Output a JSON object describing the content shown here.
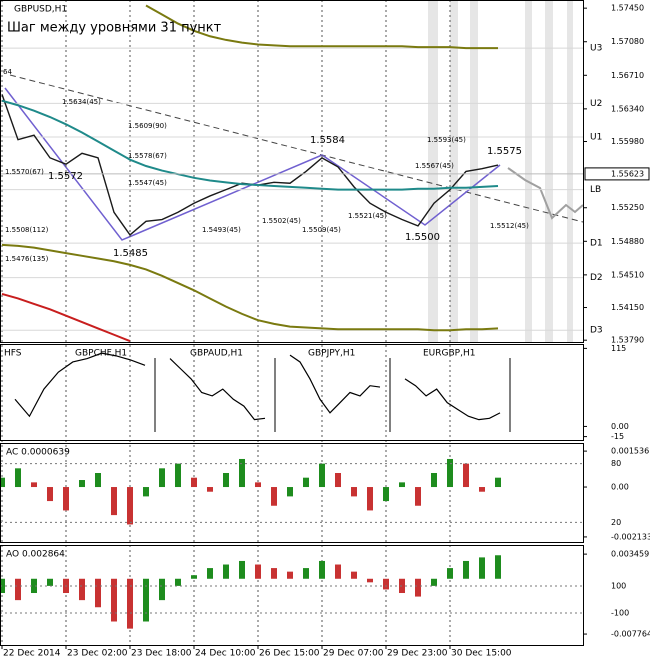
{
  "chart_data": [
    {
      "type": "line",
      "title": "GBPUSD,H1",
      "subtitle": "Шаг между уровнями 31 пункт",
      "categories": [
        "22 Dec 2014",
        null,
        null,
        null,
        "23 Dec 02:00",
        null,
        null,
        null,
        "23 Dec 18:00",
        null,
        null,
        null,
        "24 Dec 10:00",
        null,
        null,
        null,
        "26 Dec 15:00",
        null,
        null,
        null,
        "29 Dec 07:00",
        null,
        null,
        null,
        "29 Dec 23:00",
        null,
        null,
        null,
        "30 Dec 15:00",
        null,
        null,
        null
      ],
      "series": [
        {
          "color": "#1a1a1a",
          "values": [
            1.565,
            1.56,
            1.5605,
            1.558,
            1.5573,
            1.5585,
            1.558,
            1.552,
            1.5495,
            1.551,
            1.5512,
            1.552,
            1.553,
            1.5538,
            1.5545,
            1.5552,
            1.555,
            1.5553,
            1.5552,
            1.5565,
            1.558,
            1.557,
            1.5548,
            1.553,
            1.552,
            1.5512,
            1.5505,
            1.553,
            1.5545,
            1.5565,
            1.5568,
            1.5572
          ]
        },
        {
          "color": "#1f8a8a",
          "values": [
            1.5643,
            1.5638,
            1.5632,
            1.5625,
            1.5617,
            1.5608,
            1.5598,
            1.5588,
            1.5578,
            1.5571,
            1.5566,
            1.5562,
            1.5558,
            1.5555,
            1.5553,
            1.5551,
            1.555,
            1.5549,
            1.5548,
            1.5547,
            1.5546,
            1.5545,
            1.5545,
            1.5545,
            1.5545,
            1.5545,
            1.5546,
            1.5546,
            1.5547,
            1.5547,
            1.5548,
            1.5549
          ]
        },
        {
          "color": "#7a7a10",
          "values": [
            null,
            null,
            null,
            null,
            null,
            null,
            null,
            null,
            null,
            1.5748,
            1.5738,
            1.5728,
            1.572,
            1.5714,
            1.571,
            1.5707,
            1.5705,
            1.5704,
            1.5703,
            1.5703,
            1.5703,
            1.5703,
            1.5703,
            1.5703,
            1.5703,
            1.5703,
            1.5702,
            1.5702,
            1.5702,
            1.5701,
            1.5701,
            1.5701
          ]
        },
        {
          "color": "#7a7a10",
          "values": [
            1.5484,
            1.5483,
            1.5481,
            1.5478,
            1.5475,
            1.5472,
            1.5469,
            1.5466,
            1.5462,
            1.5457,
            1.545,
            1.5442,
            1.5434,
            1.5425,
            1.5416,
            1.5408,
            1.5401,
            1.5397,
            1.5394,
            1.5393,
            1.5392,
            1.5391,
            1.5391,
            1.5391,
            1.5391,
            1.5391,
            1.5391,
            1.539,
            1.539,
            1.5391,
            1.5391,
            1.5392
          ]
        },
        {
          "color": "#c81e1e",
          "values": [
            1.543,
            1.5425,
            1.5419,
            1.5413,
            1.5406,
            1.5399,
            1.5392,
            1.5385,
            1.5378,
            null,
            null,
            null,
            null,
            null,
            null,
            null,
            null,
            null,
            null,
            null,
            null,
            null,
            null,
            null,
            null,
            null,
            null,
            null,
            null,
            null,
            null,
            null
          ]
        }
      ],
      "ylim": [
        1.5377,
        1.5754
      ],
      "yticks": [
        {
          "value": 1.5745,
          "label": "1.57450"
        },
        {
          "value": 1.5708,
          "label": "1.57080"
        },
        {
          "value": 1.5671,
          "label": "1.56710"
        },
        {
          "value": 1.5634,
          "label": "1.56340"
        },
        {
          "value": 1.5598,
          "label": "1.55980"
        },
        {
          "value": 1.5525,
          "label": "1.55250"
        },
        {
          "value": 1.5488,
          "label": "1.54880"
        },
        {
          "value": 1.5451,
          "label": "1.54510"
        },
        {
          "value": 1.5415,
          "label": "1.54150"
        },
        {
          "value": 1.5379,
          "label": "1.53790"
        }
      ],
      "current_price": {
        "value": 1.55623,
        "label": "1.55623"
      },
      "levels": [
        {
          "label": "U3",
          "value": 1.5701
        },
        {
          "label": "U2",
          "value": 1.564
        },
        {
          "label": "U1",
          "value": 1.5603
        },
        {
          "label": "LB",
          "value": 1.5545
        },
        {
          "label": "D1",
          "value": 1.5486
        },
        {
          "label": "D2",
          "value": 1.5448
        },
        {
          "label": "D3",
          "value": 1.539
        }
      ],
      "level_color": "#d8d8d8",
      "annotations": [
        "1.5584",
        "1.5572",
        "1.5485",
        "1.5500",
        "1.5575",
        "1.5593(45)",
        "1.5567(45)",
        "1.5634(45)",
        "1.5609(90)",
        "1.5578(67)",
        "1.5547(45)",
        "1.5570(67)",
        "1.5508(112)",
        "1.5476(135)",
        "1.5502(45)",
        "1.5493(45)",
        "1.5521(45)",
        "1.5509(45)",
        "1.5512(45)",
        "64"
      ],
      "grid": "x"
    },
    {
      "type": "line",
      "title": "HFS",
      "series": [
        {
          "name": "GBPCHF,H1",
          "color": "#000000",
          "values": [
            40,
            15,
            55,
            80,
            95,
            100,
            108,
            104,
            98,
            90
          ]
        },
        {
          "name": "GBPAUD,H1",
          "color": "#000000",
          "values": [
            100,
            85,
            70,
            50,
            45,
            55,
            40,
            30,
            10,
            12
          ]
        },
        {
          "name": "GBPJPY,H1",
          "color": "#000000",
          "values": [
            105,
            95,
            70,
            40,
            20,
            35,
            50,
            45,
            60,
            58
          ]
        },
        {
          "name": "EURGBP,H1",
          "color": "#000000",
          "values": [
            70,
            60,
            45,
            55,
            35,
            25,
            15,
            10,
            12,
            20
          ]
        }
      ],
      "ylim": [
        -20,
        120
      ],
      "yticks": [
        115,
        {
          "value": 0,
          "label": "0.00"
        },
        -15
      ]
    },
    {
      "type": "bar",
      "title": "AC 0.0000639",
      "values": [
        0.0004,
        0.0008,
        0.0002,
        -0.0006,
        -0.001,
        0.0003,
        0.0006,
        -0.0012,
        -0.0016,
        -0.0004,
        0.0008,
        0.001,
        0.0004,
        -0.0002,
        0.0006,
        0.0012,
        0.0002,
        -0.0008,
        -0.0004,
        0.0004,
        0.001,
        0.0006,
        -0.0004,
        -0.001,
        -0.0006,
        0.0002,
        -0.0008,
        0.0006,
        0.0012,
        0.001,
        -0.0002,
        0.0004
      ],
      "up_color": "#1e8c1e",
      "down_color": "#c83232",
      "ylim": [
        -0.00235,
        0.00184
      ],
      "yticks": [
        0.001536,
        {
          "value": 0,
          "label": "0.00"
        },
        -0.002133
      ],
      "y2lim": [
        0,
        100
      ],
      "y2ticks": [
        80,
        20
      ]
    },
    {
      "type": "bar",
      "title": "AO 0.002864",
      "values": [
        -0.002,
        -0.003,
        -0.002,
        -0.001,
        -0.002,
        -0.003,
        -0.004,
        -0.006,
        -0.007,
        -0.006,
        -0.003,
        -0.001,
        0.0005,
        0.0015,
        0.002,
        0.0025,
        0.002,
        0.0015,
        0.001,
        0.0015,
        0.0025,
        0.002,
        0.001,
        -0.0005,
        -0.0015,
        -0.002,
        -0.0025,
        -0.001,
        0.0015,
        0.0025,
        0.003,
        0.0033
      ],
      "up_color": "#1e8c1e",
      "down_color": "#c83232",
      "ylim": [
        -0.0093,
        0.0046
      ],
      "yticks": [
        0.003459,
        -0.007764
      ],
      "y2lim": [
        -337,
        396
      ],
      "y2ticks": [
        100,
        -100
      ]
    }
  ]
}
